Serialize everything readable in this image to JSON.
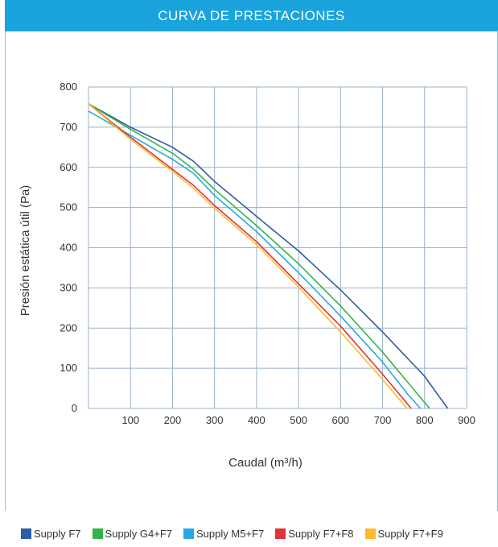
{
  "header": {
    "title": "CURVA DE PRESTACIONES"
  },
  "chart_data": {
    "type": "line",
    "title": "",
    "xlabel": "Caudal (m³/h)",
    "ylabel": "Presión estática útil (Pa)",
    "xlim": [
      0,
      900
    ],
    "ylim": [
      0,
      800
    ],
    "x_ticks": [
      100,
      200,
      300,
      400,
      500,
      600,
      700,
      800,
      900
    ],
    "y_ticks": [
      0,
      100,
      200,
      300,
      400,
      500,
      600,
      700,
      800
    ],
    "grid": true,
    "legend_position": "bottom",
    "series": [
      {
        "name": "Supply F7",
        "color": "#2e5da8",
        "points": [
          [
            0,
            758
          ],
          [
            100,
            700
          ],
          [
            200,
            650
          ],
          [
            250,
            615
          ],
          [
            300,
            565
          ],
          [
            400,
            478
          ],
          [
            500,
            392
          ],
          [
            600,
            295
          ],
          [
            700,
            190
          ],
          [
            800,
            80
          ],
          [
            855,
            0
          ]
        ]
      },
      {
        "name": "Supply G4+F7",
        "color": "#35b34a",
        "points": [
          [
            0,
            758
          ],
          [
            100,
            695
          ],
          [
            200,
            635
          ],
          [
            250,
            595
          ],
          [
            300,
            545
          ],
          [
            400,
            455
          ],
          [
            500,
            360
          ],
          [
            600,
            255
          ],
          [
            700,
            140
          ],
          [
            780,
            40
          ],
          [
            812,
            0
          ]
        ]
      },
      {
        "name": "Supply M5+F7",
        "color": "#27aae1",
        "points": [
          [
            0,
            740
          ],
          [
            100,
            680
          ],
          [
            200,
            620
          ],
          [
            250,
            585
          ],
          [
            300,
            530
          ],
          [
            400,
            440
          ],
          [
            500,
            338
          ],
          [
            600,
            230
          ],
          [
            700,
            115
          ],
          [
            760,
            35
          ],
          [
            790,
            0
          ]
        ]
      },
      {
        "name": "Supply F7+F8",
        "color": "#e03237",
        "points": [
          [
            0,
            758
          ],
          [
            100,
            675
          ],
          [
            200,
            595
          ],
          [
            250,
            555
          ],
          [
            300,
            505
          ],
          [
            400,
            415
          ],
          [
            500,
            310
          ],
          [
            600,
            205
          ],
          [
            700,
            85
          ],
          [
            768,
            0
          ]
        ]
      },
      {
        "name": "Supply F7+F9",
        "color": "#fbbb2d",
        "points": [
          [
            0,
            758
          ],
          [
            100,
            670
          ],
          [
            200,
            590
          ],
          [
            250,
            548
          ],
          [
            300,
            498
          ],
          [
            400,
            408
          ],
          [
            500,
            302
          ],
          [
            600,
            190
          ],
          [
            700,
            72
          ],
          [
            758,
            0
          ]
        ]
      }
    ]
  }
}
